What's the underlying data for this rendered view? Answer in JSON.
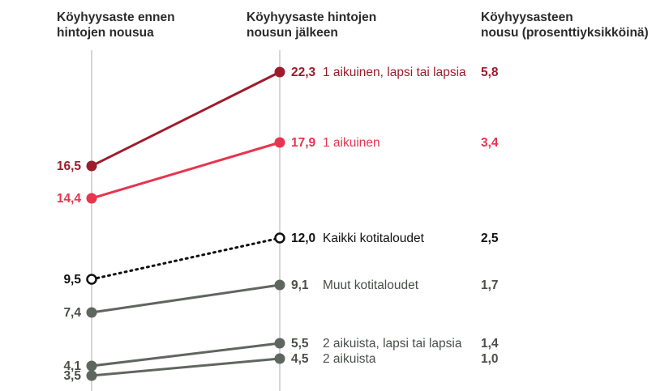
{
  "headers": {
    "before": "Köyhyysaste ennen\nhintojen nousua",
    "after": "Köyhyysaste hintojen\nnousun jälkeen",
    "change": "Köyhyysasteen\nnousu (prosenttiyksikköinä)"
  },
  "chart_data": {
    "type": "line",
    "title": "",
    "x": [
      "Köyhyysaste ennen hintojen nousua",
      "Köyhyysaste hintojen nousun jälkeen"
    ],
    "ylim": [
      3.5,
      22.3
    ],
    "grid": false,
    "series": [
      {
        "name": "1 aikuinen, lapsi tai lapsia",
        "before": 16.5,
        "after": 22.3,
        "before_label": "16,5",
        "after_label": "22,3",
        "change_label": "5,8",
        "color": "#9e1b2c",
        "style": "solid",
        "marker": "filled"
      },
      {
        "name": "1 aikuinen",
        "before": 14.4,
        "after": 17.9,
        "before_label": "14,4",
        "after_label": "17,9",
        "change_label": "3,4",
        "color": "#e8344f",
        "style": "solid",
        "marker": "filled"
      },
      {
        "name": "Kaikki kotitaloudet",
        "before": 9.5,
        "after": 12.0,
        "before_label": "9,5",
        "after_label": "12,0",
        "change_label": "2,5",
        "color": "#111111",
        "style": "dotted",
        "marker": "hollow"
      },
      {
        "name": "Muut kotitaloudet",
        "before": 7.4,
        "after": 9.1,
        "before_label": "7,4",
        "after_label": "9,1",
        "change_label": "1,7",
        "color": "#5f6660",
        "style": "solid",
        "marker": "filled"
      },
      {
        "name": "2 aikuista, lapsi tai lapsia",
        "before": 4.1,
        "after": 5.5,
        "before_label": "4,1",
        "after_label": "5,5",
        "change_label": "1,4",
        "color": "#5f6660",
        "style": "solid",
        "marker": "filled"
      },
      {
        "name": "2 aikuista",
        "before": 3.5,
        "after": 4.5,
        "before_label": "3,5",
        "after_label": "4,5",
        "change_label": "1,0",
        "color": "#5f6660",
        "style": "solid",
        "marker": "filled"
      }
    ]
  }
}
